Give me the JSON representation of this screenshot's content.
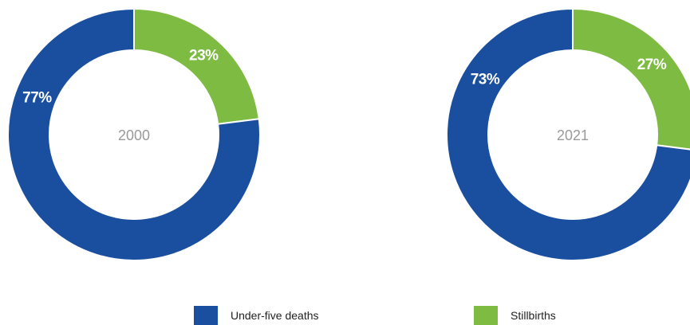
{
  "chart_data": [
    {
      "type": "pie",
      "center_label": "2000",
      "slices": [
        {
          "name": "Stillbirths",
          "value": 23,
          "label": "23%"
        },
        {
          "name": "Under-five deaths",
          "value": 77,
          "label": "77%"
        }
      ]
    },
    {
      "type": "pie",
      "center_label": "2021",
      "slices": [
        {
          "name": "Stillbirths",
          "value": 27,
          "label": "27%"
        },
        {
          "name": "Under-five deaths",
          "value": 73,
          "label": "73%"
        }
      ]
    }
  ],
  "legend": {
    "items": [
      {
        "label": "Under-five deaths",
        "color": "#1a4f9f"
      },
      {
        "label": "Stillbirths",
        "color": "#7dbb42"
      }
    ]
  },
  "colors": {
    "Under-five deaths": "#1a4f9f",
    "Stillbirths": "#7dbb42"
  }
}
